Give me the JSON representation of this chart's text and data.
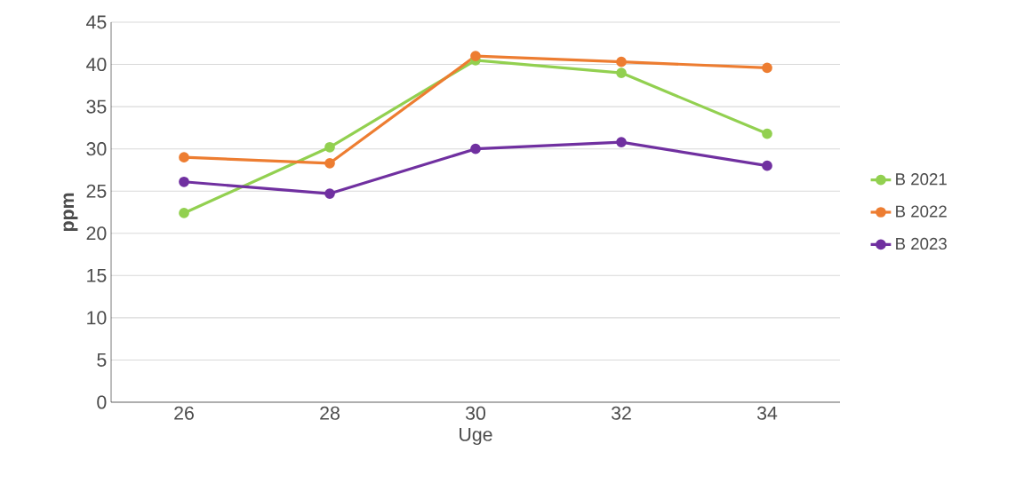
{
  "chart_data": {
    "type": "line",
    "xlabel": "Uge",
    "ylabel": "ppm",
    "categories": [
      "26",
      "28",
      "30",
      "32",
      "34"
    ],
    "series": [
      {
        "name": "B 2021",
        "color": "#92d050",
        "values": [
          22.4,
          30.2,
          40.5,
          39.0,
          31.8
        ]
      },
      {
        "name": "B 2022",
        "color": "#ed7d31",
        "values": [
          29.0,
          28.3,
          41.0,
          40.3,
          39.6
        ]
      },
      {
        "name": "B 2023",
        "color": "#7030a0",
        "values": [
          26.1,
          24.7,
          30.0,
          30.8,
          28.0
        ]
      }
    ],
    "ylim": [
      0,
      45
    ],
    "yticks": [
      0,
      5,
      10,
      15,
      20,
      25,
      30,
      35,
      40,
      45
    ],
    "grid": "y",
    "legend": "right",
    "marker": "circle",
    "line_style": "solid"
  }
}
